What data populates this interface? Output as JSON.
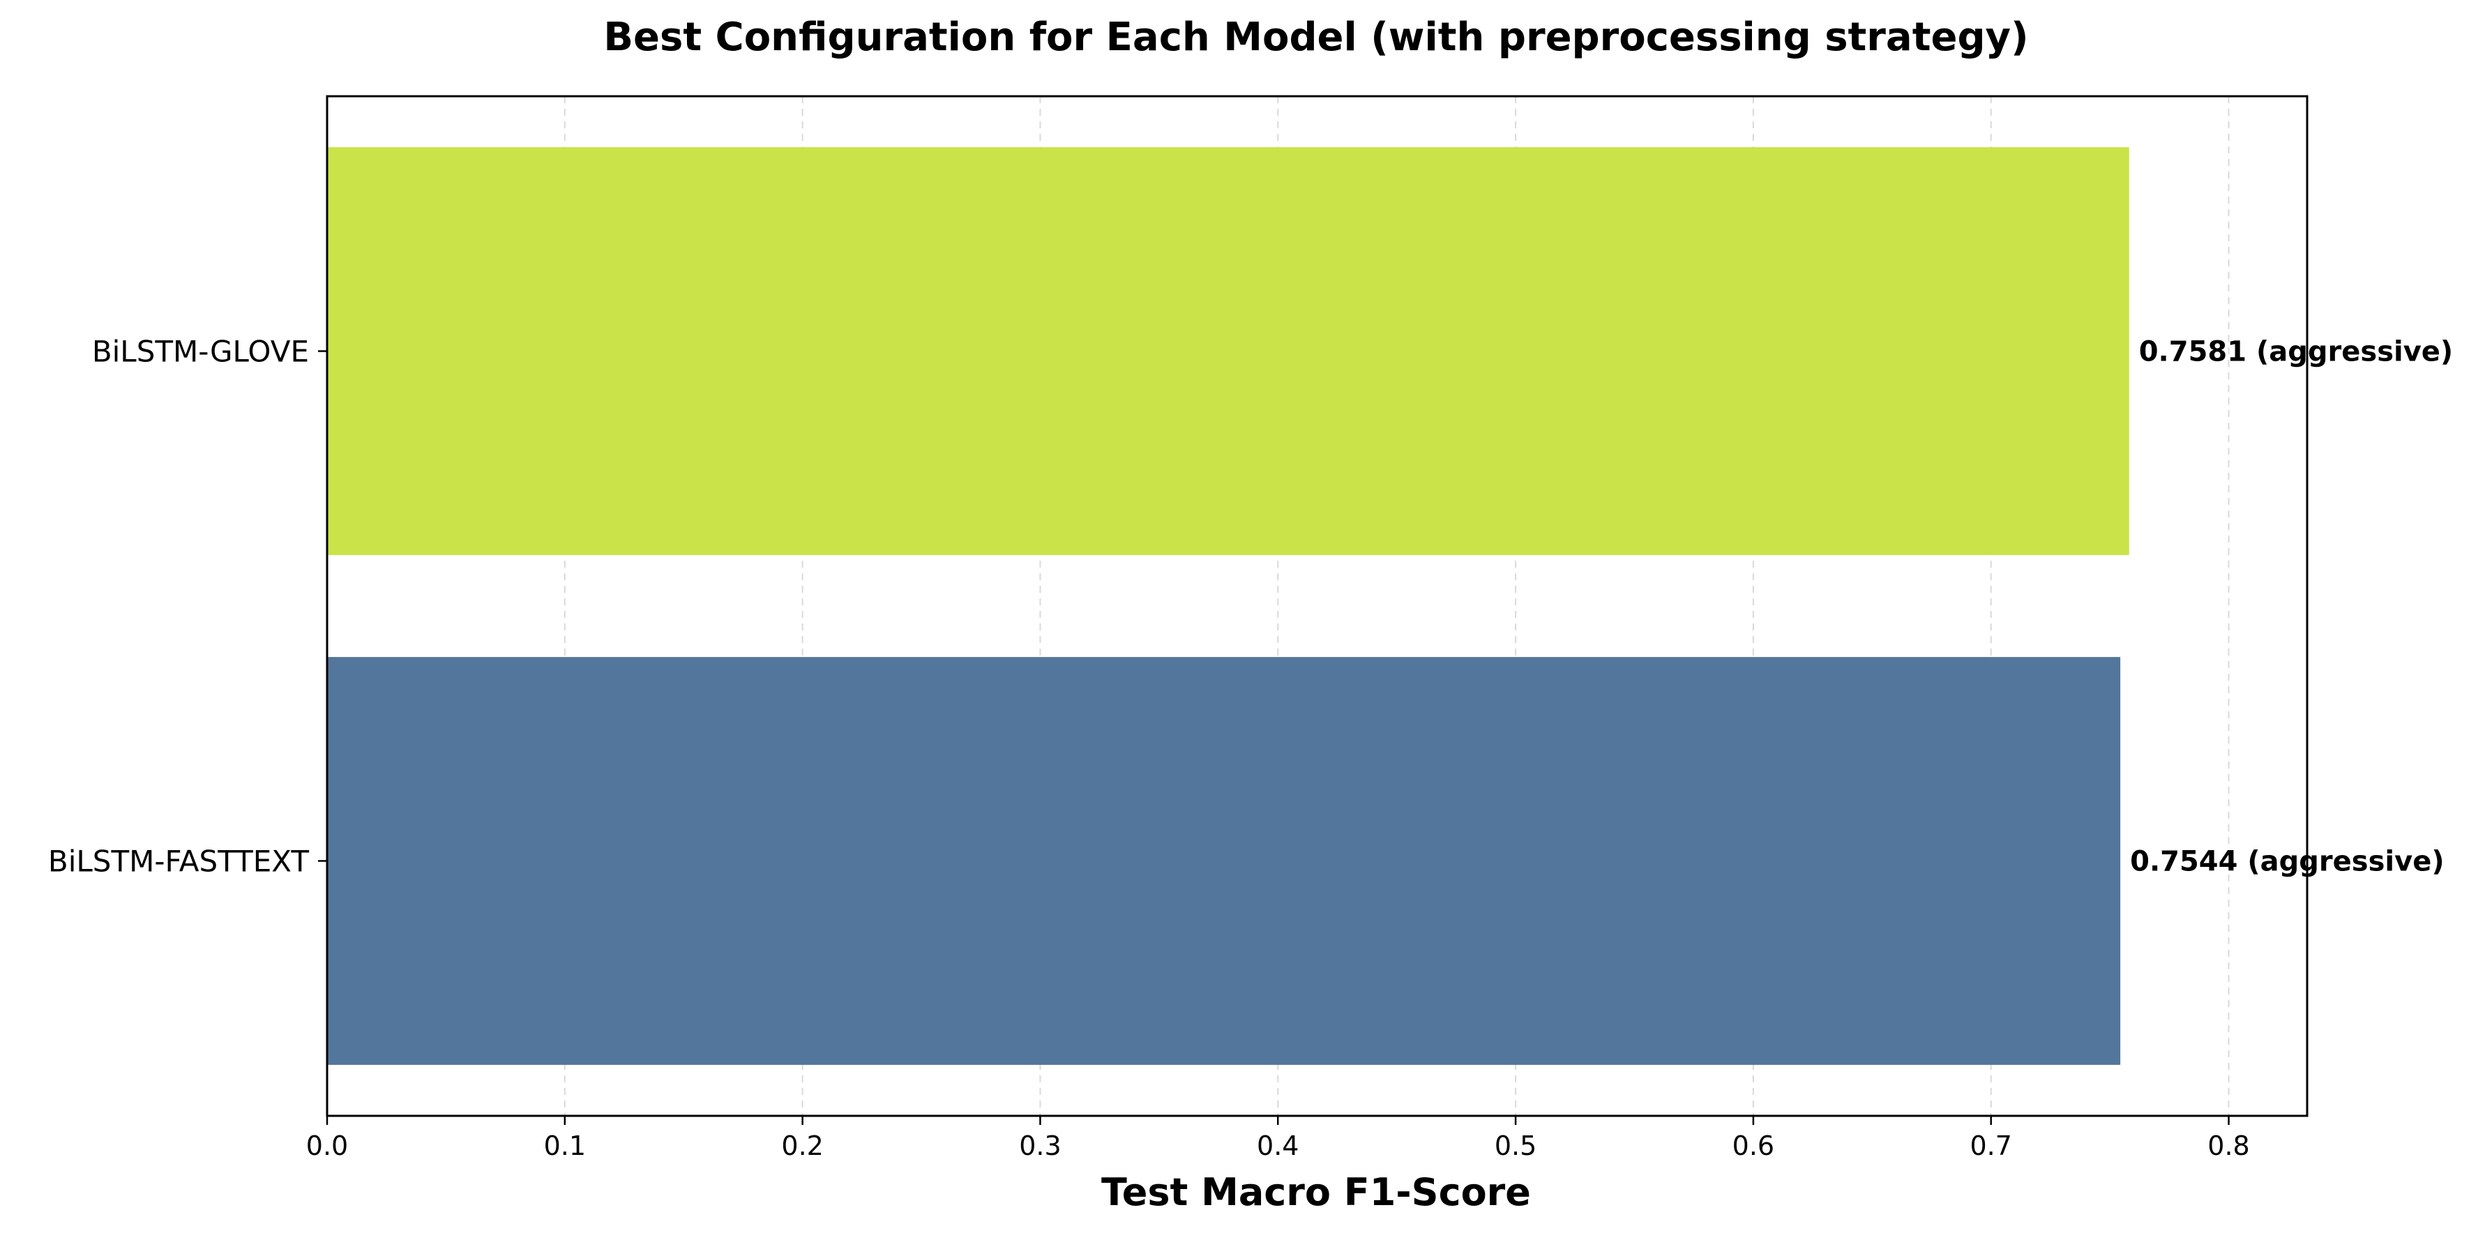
{
  "chart_data": {
    "type": "bar",
    "orientation": "horizontal",
    "title": "Best Configuration for Each Model (with preprocessing strategy)",
    "xlabel": "Test Macro F1-Score",
    "ylabel": "",
    "xlim": [
      0,
      0.833
    ],
    "xticks": [
      0.0,
      0.1,
      0.2,
      0.3,
      0.4,
      0.5,
      0.6,
      0.7,
      0.8
    ],
    "xtick_labels": [
      "0.0",
      "0.1",
      "0.2",
      "0.3",
      "0.4",
      "0.5",
      "0.6",
      "0.7",
      "0.8"
    ],
    "grid": "x-axis dashed",
    "categories": [
      "BiLSTM-FASTTEXT",
      "BiLSTM-GLOVE"
    ],
    "values": [
      0.7544,
      0.7581
    ],
    "data_labels": [
      "0.7544 (aggressive)",
      "0.7581 (aggressive)"
    ],
    "colors": [
      "#53769c",
      "#c9e348"
    ]
  }
}
